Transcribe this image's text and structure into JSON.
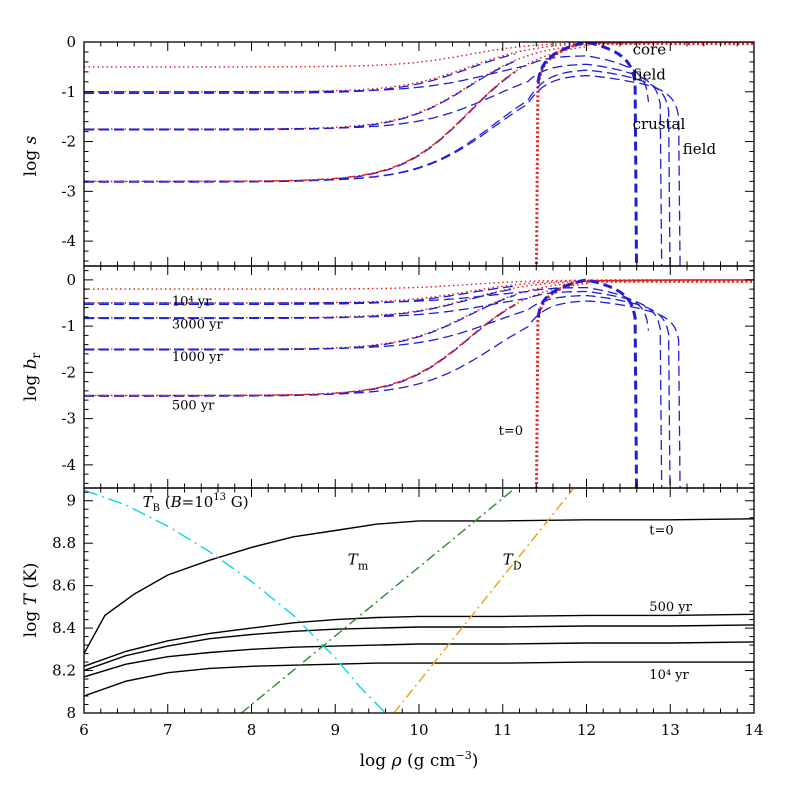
{
  "colors": {
    "red_dotted": "#e41a1c",
    "blue_dashed": "#1f1fd6",
    "black": "#000000",
    "cyan": "#00d8e0",
    "green": "#2e8b2e",
    "orange": "#f39a1a"
  },
  "chart_data": [
    {
      "id": "panel-s",
      "type": "line",
      "ylabel_plain": "log ",
      "ylabel_italic": "s",
      "xlim": [
        6,
        14
      ],
      "ylim": [
        -4.5,
        0
      ],
      "yticks": [
        -4,
        -3,
        -2,
        -1,
        0
      ],
      "xticks": [
        6,
        7,
        8,
        9,
        10,
        11,
        12,
        13,
        14
      ],
      "annotations": [
        {
          "id": "core",
          "line1": "core",
          "line2": "field",
          "x": 12.55,
          "y": -0.25
        },
        {
          "id": "crustal",
          "line1": "crustal",
          "line2": "field",
          "x": 13.15,
          "y": -1.45
        }
      ],
      "core_levels": [
        -0.5,
        -1.0,
        -1.75,
        -2.8
      ],
      "crust_log_drops": [
        0,
        0.5,
        0.8,
        1.0,
        1.2
      ],
      "crust_inner_edge": 11.4,
      "crust_peak": 12.0,
      "crust_outer_edge": 12.6,
      "crust_outer_edges": [
        12.6,
        12.75,
        12.9,
        13.0,
        13.12
      ]
    },
    {
      "id": "panel-br",
      "type": "line",
      "ylabel_plain": "log ",
      "ylabel_italic": "b",
      "ylabel_sub": "r",
      "xlim": [
        6,
        14
      ],
      "ylim": [
        -4.5,
        0.3
      ],
      "yticks": [
        -4,
        -3,
        -2,
        -1,
        0
      ],
      "xticks": [
        6,
        7,
        8,
        9,
        10,
        11,
        12,
        13,
        14
      ],
      "annotations": [
        {
          "id": "1e4",
          "text": "10⁴ yr",
          "x": 7.05,
          "y": -0.55
        },
        {
          "id": "3000",
          "text": "3000 yr",
          "x": 7.05,
          "y": -1.05
        },
        {
          "id": "1000",
          "text": "1000 yr",
          "x": 7.05,
          "y": -1.75
        },
        {
          "id": "500",
          "text": "500 yr",
          "x": 7.05,
          "y": -2.8
        },
        {
          "id": "t0",
          "text": "t=0",
          "x": 10.95,
          "y": -3.35
        }
      ],
      "core_levels": [
        -0.2,
        -0.5,
        -0.82,
        -1.5,
        -2.5
      ],
      "crust_log_drops": [
        0,
        0.3,
        0.45,
        0.6,
        0.8
      ],
      "crust_inner_edge": 11.4,
      "crust_peak": 12.0,
      "crust_outer_edges": [
        12.6,
        12.75,
        12.9,
        13.0,
        13.12
      ]
    },
    {
      "id": "panel-T",
      "type": "line",
      "ylabel_plain": "log ",
      "ylabel_italic": "T",
      "ylabel_tail": " (K)",
      "xlabel_prefix": "log ",
      "xlabel_italic": "ρ",
      "xlabel_rest": " (g cm",
      "xlabel_sup": "−3",
      "xlabel_end": ")",
      "xlim": [
        6,
        14
      ],
      "ylim": [
        8.0,
        9.06
      ],
      "yticks": [
        8,
        8.2,
        8.4,
        8.6,
        8.8,
        9
      ],
      "ytick_labels": [
        "8",
        "8.2",
        "8.4",
        "8.6",
        "8.8",
        "9"
      ],
      "xticks": [
        6,
        7,
        8,
        9,
        10,
        11,
        12,
        13,
        14
      ],
      "series": [
        {
          "id": "t0",
          "label": "t=0",
          "x": [
            6.0,
            6.25,
            6.6,
            7.0,
            7.5,
            8.0,
            8.5,
            9.0,
            9.5,
            10.0,
            11.0,
            12.0,
            13.0,
            14.0
          ],
          "y": [
            8.28,
            8.46,
            8.56,
            8.65,
            8.72,
            8.78,
            8.83,
            8.86,
            8.89,
            8.905,
            8.905,
            8.91,
            8.91,
            8.915
          ]
        },
        {
          "id": "500",
          "label": "500 yr",
          "x": [
            6.0,
            6.5,
            7.0,
            7.5,
            8.0,
            8.5,
            9.0,
            9.5,
            10.0,
            11.0,
            12.0,
            13.0,
            14.0
          ],
          "y": [
            8.22,
            8.29,
            8.34,
            8.375,
            8.4,
            8.425,
            8.44,
            8.45,
            8.455,
            8.455,
            8.46,
            8.46,
            8.465
          ]
        },
        {
          "id": "s2",
          "x": [
            6.0,
            6.5,
            7.0,
            7.5,
            8.0,
            8.5,
            9.0,
            9.5,
            10.0,
            11.0,
            12.0,
            13.0,
            14.0
          ],
          "y": [
            8.2,
            8.27,
            8.315,
            8.35,
            8.37,
            8.385,
            8.395,
            8.4,
            8.405,
            8.405,
            8.41,
            8.41,
            8.415
          ]
        },
        {
          "id": "s3",
          "x": [
            6.0,
            6.5,
            7.0,
            7.5,
            8.0,
            8.5,
            9.0,
            9.5,
            10.0,
            11.0,
            12.0,
            13.0,
            14.0
          ],
          "y": [
            8.17,
            8.23,
            8.265,
            8.285,
            8.3,
            8.31,
            8.315,
            8.32,
            8.325,
            8.325,
            8.33,
            8.33,
            8.335
          ]
        },
        {
          "id": "1e4",
          "label": "10⁴ yr",
          "x": [
            6.0,
            6.5,
            7.0,
            7.5,
            8.0,
            8.5,
            9.0,
            9.5,
            10.0,
            11.0,
            12.0,
            13.0,
            14.0
          ],
          "y": [
            8.08,
            8.15,
            8.19,
            8.21,
            8.22,
            8.225,
            8.23,
            8.235,
            8.235,
            8.235,
            8.24,
            8.24,
            8.24
          ]
        }
      ],
      "lines": [
        {
          "id": "TB",
          "x": [
            6.0,
            6.5,
            7.0,
            7.5,
            8.0,
            8.5,
            9.0,
            9.3,
            9.6
          ],
          "y": [
            9.05,
            8.98,
            8.88,
            8.76,
            8.62,
            8.46,
            8.26,
            8.12,
            8.0
          ]
        },
        {
          "id": "Tm",
          "x": [
            7.88,
            11.15
          ],
          "y": [
            8.0,
            9.06
          ]
        },
        {
          "id": "TD",
          "x": [
            9.7,
            11.85
          ],
          "y": [
            8.0,
            9.06
          ]
        }
      ],
      "annotations": [
        {
          "id": "TB",
          "main": "T",
          "sub": "B",
          "rest_a": " (",
          "rest_b": "B",
          "rest_c": "=10",
          "sup": "13",
          "rest_d": " G)",
          "x": 6.7,
          "y": 8.97
        },
        {
          "id": "Tm",
          "main": "T",
          "sub": "m",
          "x": 9.15,
          "y": 8.7
        },
        {
          "id": "TD",
          "main": "T",
          "sub": "D",
          "x": 11.0,
          "y": 8.7
        },
        {
          "id": "t0",
          "text": "t=0",
          "x": 12.75,
          "y": 8.84
        },
        {
          "id": "500",
          "text": "500 yr",
          "x": 12.75,
          "y": 8.48
        },
        {
          "id": "1e4",
          "text": "10⁴ yr",
          "x": 12.75,
          "y": 8.16
        }
      ]
    }
  ]
}
